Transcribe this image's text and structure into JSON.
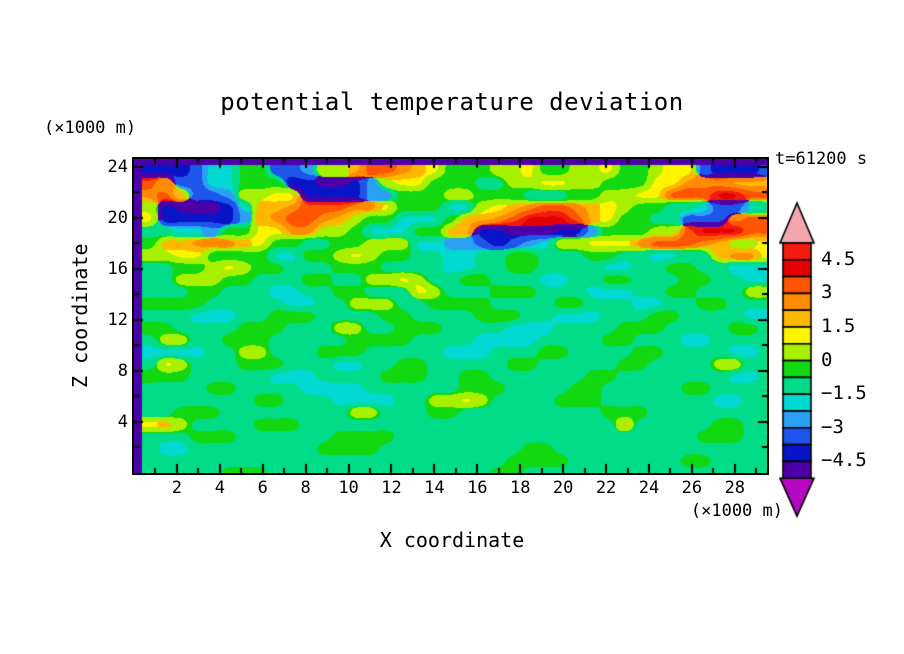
{
  "meta": {
    "title": "potential temperature deviation",
    "time_label": "t=61200 s"
  },
  "axes": {
    "x": {
      "name": "X coordinate",
      "unit": "(×1000 m)",
      "range": [
        0,
        29.5
      ],
      "tick_step": 1,
      "label_step": 2,
      "tick_labels": [
        "2",
        "4",
        "6",
        "8",
        "10",
        "12",
        "14",
        "16",
        "18",
        "20",
        "22",
        "24",
        "26",
        "28"
      ]
    },
    "z": {
      "name": "Z coordinate",
      "unit": "(×1000 m)",
      "range": [
        0,
        24.6
      ],
      "tick_step": 2,
      "label_step": 4,
      "tick_labels": [
        "4",
        "8",
        "12",
        "16",
        "20",
        "24"
      ]
    }
  },
  "colorbar": {
    "labels": [
      "4.5",
      "3",
      "1.5",
      "0",
      "−1.5",
      "−3",
      "−4.5"
    ],
    "label_boundaries": [
      1,
      3,
      5,
      7,
      9,
      11,
      13
    ],
    "over_color": "#f4a6ae",
    "under_color": "#b607c2"
  },
  "chart_data": {
    "type": "heatmap",
    "subtype": "filled_contour",
    "title": "potential temperature deviation",
    "time_annotation": "t=61200 s",
    "xlabel": "X coordinate (×1000 m)",
    "zlabel": "Z coordinate (×1000 m)",
    "x_range": [
      0,
      29.5
    ],
    "z_range": [
      0,
      24.6
    ],
    "levels": {
      "min": -5.25,
      "max": 5.25,
      "interval": 0.75,
      "labeled": [
        4.5,
        3,
        1.5,
        0,
        -1.5,
        -3,
        -4.5
      ]
    },
    "palette": [
      "#f31b10",
      "#e30000",
      "#ff5400",
      "#ff8c00",
      "#ffb700",
      "#fef400",
      "#a6f000",
      "#12d812",
      "#00dc87",
      "#00d8d2",
      "#2aa1f5",
      "#1e55ea",
      "#0714c8",
      "#4c00a8"
    ],
    "grid": {
      "encoding": "each char is a hex palette index 0-d; value of cell = 4.875 - 0.75*index; rows run top to bottom (z=24.6 -> 0), 40 columns left to right (x=0 -> 29.5)",
      "nx": 40,
      "nz": 26,
      "rows": [
        "cccb9977bba664223457776657766577655bcccb",
        "24bb99777ccddca6557778866556677755333444",
        "325bba6655ccccaa777667778887766552221122",
        "6cdddc944322233577799654322345677889bb98",
        "5ccccca432234677999744321112457788bbb322",
        "8899a7755336679997744ccdddcca77766211122",
        "7443334577887766699aabcba966555322234665",
        "6655777799776567788998877888778899884335",
        "8877656778887778888998877888899887788999",
        "8866677888778866568877888998877888778899",
        "8887788899887788856888777888999887788866",
        "7777888889988666887777888877888998877888",
        "8889998877788887788887778899988877888899",
        "7788887778886688777888899988887778888778",
        "8668877788888777788889999888877888998888",
        "9999886688877788888999888778888778888998",
        "8568887778889988778888877888887788886688",
        "7778888899988887778877888888778888888998",
        "8888778888999988888877788887788888778888",
        "8888888778889999886656888877788888889988",
        "8877788888888668887788888888877788888888",
        "5468888777888888888888888888884888887788",
        "8887778888887777888888888888888888877788",
        "8998888888877778888888887788888888888888",
        "8888888888888888888888877778888888778888",
        "8888877788888888888888778888888888888888"
      ]
    }
  }
}
